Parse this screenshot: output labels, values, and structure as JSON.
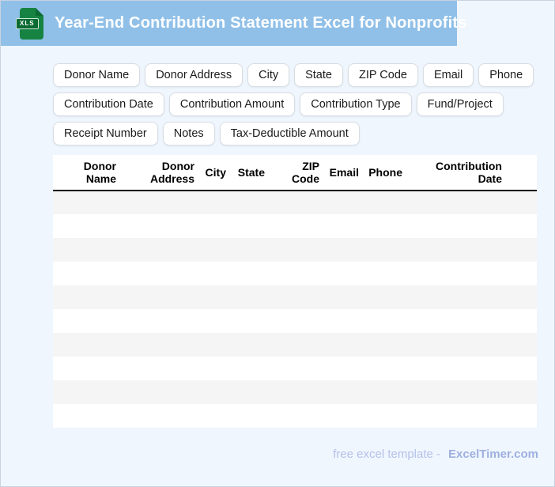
{
  "colors": {
    "banner_blue": "#90c0e8",
    "page_background": "#eff6fe",
    "row_stripe_gray": "#f5f5f6",
    "icon_green": "#168343",
    "icon_band_green": "#0c6b33",
    "footer_text": "#b5c1ea",
    "footer_brand": "#9fb0e0"
  },
  "header": {
    "title": "Year-End Contribution Statement Excel for Nonprofits",
    "file_icon_label": "XLS"
  },
  "field_chips": [
    "Donor Name",
    "Donor Address",
    "City",
    "State",
    "ZIP Code",
    "Email",
    "Phone",
    "Contribution Date",
    "Contribution Amount",
    "Contribution Type",
    "Fund/Project",
    "Receipt Number",
    "Notes",
    "Tax-Deductible Amount"
  ],
  "table": {
    "columns": [
      "Donor Name",
      "Donor Address",
      "City",
      "State",
      "ZIP Code",
      "Email",
      "Phone",
      "Contribution Date"
    ],
    "empty_row_count": 10
  },
  "footer": {
    "label": "free excel template -",
    "brand": "ExcelTimer.com"
  }
}
